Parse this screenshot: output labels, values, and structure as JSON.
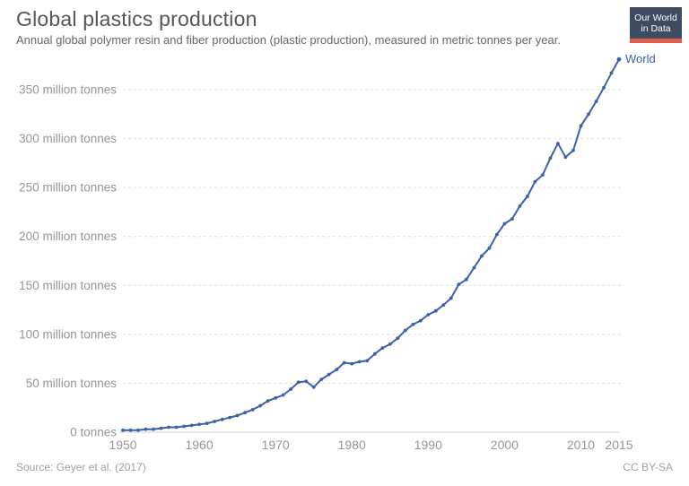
{
  "header": {
    "title": "Global plastics production",
    "subtitle": "Annual global polymer resin and fiber production (plastic production), measured in metric tonnes per year.",
    "logo": {
      "line1": "Our World",
      "line2": "in Data"
    }
  },
  "footer": {
    "source": "Source: Geyer et al. (2017)",
    "license": "CC BY-SA"
  },
  "colors": {
    "series_blue": "#3a62a9",
    "grid": "#e0e0e0",
    "axis": "#cccccc",
    "tick_text": "#959595",
    "logo_bg": "#3e4c63",
    "logo_stripe": "#e05d49"
  },
  "chart_data": {
    "type": "line",
    "title": "Global plastics production",
    "xlabel": "",
    "ylabel": "",
    "xlim": [
      1950,
      2015
    ],
    "ylim": [
      0,
      350
    ],
    "grid": "horizontal-dashed",
    "legend_position": "end-of-line-label",
    "x_ticks": [
      1950,
      1960,
      1970,
      1980,
      1990,
      2000,
      2010,
      2015
    ],
    "y_ticks": [
      {
        "value": 0,
        "label": "0 tonnes"
      },
      {
        "value": 50,
        "label": "50 million tonnes"
      },
      {
        "value": 100,
        "label": "100 million tonnes"
      },
      {
        "value": 150,
        "label": "150 million tonnes"
      },
      {
        "value": 200,
        "label": "200 million tonnes"
      },
      {
        "value": 250,
        "label": "250 million tonnes"
      },
      {
        "value": 300,
        "label": "300 million tonnes"
      },
      {
        "value": 350,
        "label": "350 million tonnes"
      }
    ],
    "unit": "million tonnes",
    "series": [
      {
        "name": "World",
        "color": "#3a62a9",
        "x": [
          1950,
          1951,
          1952,
          1953,
          1954,
          1955,
          1956,
          1957,
          1958,
          1959,
          1960,
          1961,
          1962,
          1963,
          1964,
          1965,
          1966,
          1967,
          1968,
          1969,
          1970,
          1971,
          1972,
          1973,
          1974,
          1975,
          1976,
          1977,
          1978,
          1979,
          1980,
          1981,
          1982,
          1983,
          1984,
          1985,
          1986,
          1987,
          1988,
          1989,
          1990,
          1991,
          1992,
          1993,
          1994,
          1995,
          1996,
          1997,
          1998,
          1999,
          2000,
          2001,
          2002,
          2003,
          2004,
          2005,
          2006,
          2007,
          2008,
          2009,
          2010,
          2011,
          2012,
          2013,
          2014,
          2015
        ],
        "values": [
          2,
          2,
          2,
          3,
          3,
          4,
          5,
          5,
          6,
          7,
          8,
          9,
          11,
          13,
          15,
          17,
          20,
          23,
          27,
          32,
          35,
          38,
          44,
          51,
          52,
          46,
          54,
          59,
          64,
          71,
          70,
          72,
          73,
          80,
          86,
          90,
          96,
          104,
          110,
          114,
          120,
          124,
          130,
          137,
          151,
          156,
          168,
          180,
          188,
          202,
          213,
          218,
          231,
          241,
          256,
          263,
          280,
          295,
          281,
          288,
          313,
          325,
          338,
          352,
          367,
          381
        ]
      }
    ]
  }
}
